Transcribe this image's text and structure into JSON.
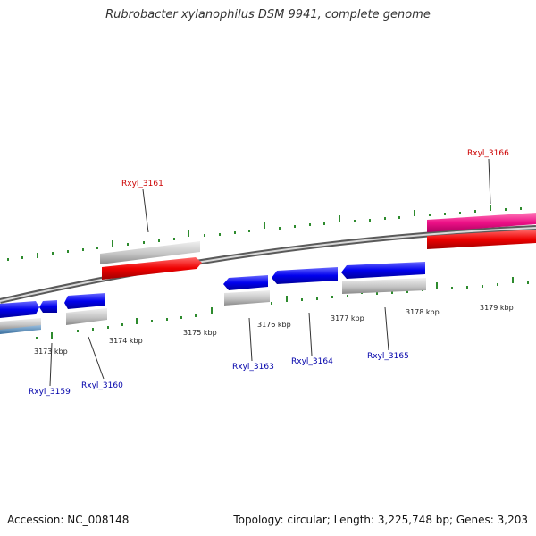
{
  "title": "Rubrobacter xylanophilus DSM 9941, complete genome",
  "footer": {
    "accession": "Accession: NC_008148",
    "topology": "Topology: circular; Length: 3,225,748 bp; Genes: 3,203"
  },
  "colors": {
    "forward_gene": "#e8e8e8",
    "highlight_gene": "#ff0066",
    "red_cds": "#ee0000",
    "blue_cds": "#0000ee",
    "grey_feature": "#b0b0b0",
    "backbone": "#888888",
    "tick": "#2e8b2e",
    "label_red": "#cc0000",
    "label_blue": "#0000aa"
  },
  "tick_labels": [
    "3173 kbp",
    "3174 kbp",
    "3175 kbp",
    "3176 kbp",
    "3177 kbp",
    "3178 kbp",
    "3179 kbp"
  ],
  "genes": [
    {
      "label": "Rxyl_3161",
      "strand": "forward"
    },
    {
      "label": "Rxyl_3166",
      "strand": "forward"
    },
    {
      "label": "Rxyl_3159",
      "strand": "reverse"
    },
    {
      "label": "Rxyl_3160",
      "strand": "reverse"
    },
    {
      "label": "Rxyl_3163",
      "strand": "reverse"
    },
    {
      "label": "Rxyl_3164",
      "strand": "reverse"
    },
    {
      "label": "Rxyl_3165",
      "strand": "reverse"
    }
  ]
}
